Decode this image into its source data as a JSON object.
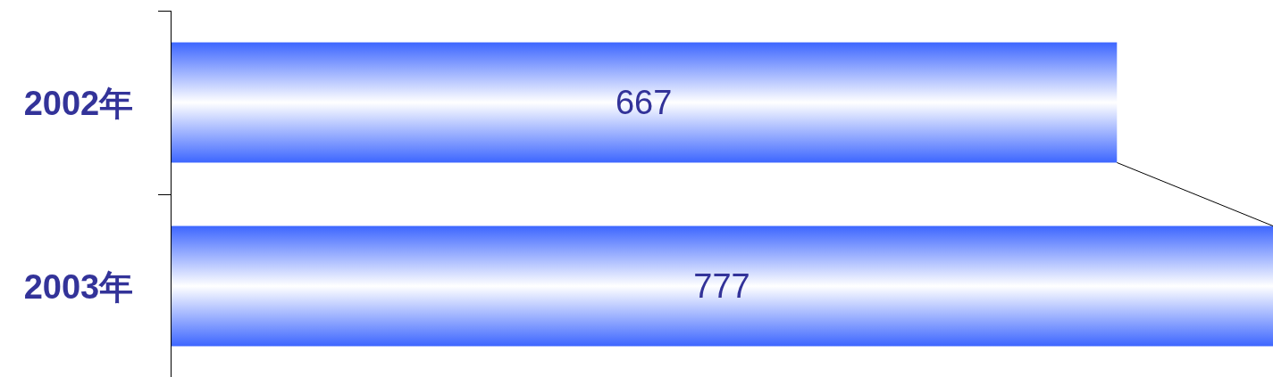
{
  "chart_data": {
    "type": "bar",
    "orientation": "horizontal",
    "categories": [
      "2002年",
      "2003年"
    ],
    "values": [
      667,
      777
    ],
    "color": "#3d66ff",
    "data_labels": true
  }
}
